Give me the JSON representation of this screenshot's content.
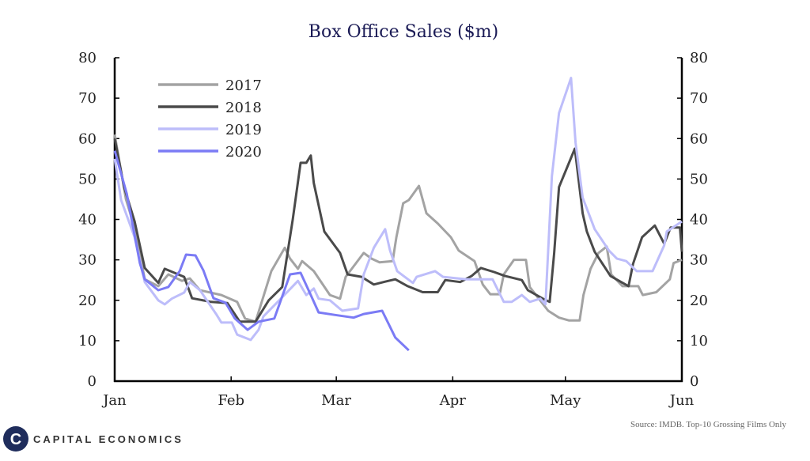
{
  "chart_data": {
    "type": "line",
    "title": "Box Office Sales ($m)",
    "xlabel": "",
    "ylabel": "",
    "x_unit": "days since Jan 1",
    "xlim": [
      0,
      151
    ],
    "ylim": [
      0,
      80
    ],
    "yticks": [
      0,
      10,
      20,
      30,
      40,
      50,
      60,
      70,
      80
    ],
    "xticks": [
      {
        "label": "Jan",
        "day": 0
      },
      {
        "label": "Feb",
        "day": 31
      },
      {
        "label": "Mar",
        "day": 59
      },
      {
        "label": "Apr",
        "day": 90
      },
      {
        "label": "May",
        "day": 120
      },
      {
        "label": "Jun",
        "day": 151
      }
    ],
    "grid": false,
    "legend_position": "top-left",
    "series": [
      {
        "name": "2017",
        "color": "#a3a3a3",
        "points": [
          [
            0,
            61
          ],
          [
            3,
            45
          ],
          [
            5.3,
            38
          ],
          [
            8,
            25.2
          ],
          [
            11.6,
            23.5
          ],
          [
            14.3,
            26.4
          ],
          [
            17.9,
            24.8
          ],
          [
            20,
            25.4
          ],
          [
            22.7,
            22.5
          ],
          [
            28.4,
            21.3
          ],
          [
            32.6,
            19.6
          ],
          [
            34.7,
            15.5
          ],
          [
            37.5,
            14.7
          ],
          [
            41.7,
            27.2
          ],
          [
            45.3,
            33
          ],
          [
            46.7,
            30.3
          ],
          [
            48.8,
            27.8
          ],
          [
            49.9,
            29.7
          ],
          [
            53,
            27.2
          ],
          [
            57.3,
            21.3
          ],
          [
            60,
            20.4
          ],
          [
            61.5,
            25.8
          ],
          [
            66.3,
            31.7
          ],
          [
            68.4,
            30.3
          ],
          [
            70.5,
            29.4
          ],
          [
            74,
            29.7
          ],
          [
            75,
            35.6
          ],
          [
            76.8,
            44
          ],
          [
            78.3,
            44.8
          ],
          [
            81,
            48.3
          ],
          [
            83,
            41.5
          ],
          [
            86,
            39
          ],
          [
            89.5,
            35.6
          ],
          [
            91.6,
            32.3
          ],
          [
            95.8,
            29.7
          ],
          [
            98,
            23.9
          ],
          [
            100,
            21.5
          ],
          [
            102.5,
            21.5
          ],
          [
            103.6,
            26.4
          ],
          [
            106.3,
            30
          ],
          [
            109.5,
            30
          ],
          [
            110.5,
            23.3
          ],
          [
            115.4,
            17.4
          ],
          [
            118.3,
            15.7
          ],
          [
            121,
            15
          ],
          [
            123.8,
            15
          ],
          [
            124.8,
            21.3
          ],
          [
            126.7,
            27.8
          ],
          [
            128.8,
            31.7
          ],
          [
            131,
            33.3
          ],
          [
            132.2,
            26.4
          ],
          [
            135.2,
            23.5
          ],
          [
            139.4,
            23.5
          ],
          [
            140.6,
            21.3
          ],
          [
            144.2,
            22
          ],
          [
            147.8,
            25.2
          ],
          [
            148.8,
            29.2
          ],
          [
            151,
            30
          ]
        ]
      },
      {
        "name": "2018",
        "color": "#4a4a4a",
        "points": [
          [
            0,
            60
          ],
          [
            2.5,
            48
          ],
          [
            5.3,
            39.5
          ],
          [
            8,
            28
          ],
          [
            11.6,
            24.3
          ],
          [
            13.3,
            27.8
          ],
          [
            18.5,
            25.8
          ],
          [
            20.6,
            20.5
          ],
          [
            25.7,
            19.6
          ],
          [
            30,
            19.3
          ],
          [
            33.3,
            14.7
          ],
          [
            37.5,
            14.7
          ],
          [
            41,
            20
          ],
          [
            44.6,
            23.3
          ],
          [
            47.4,
            40
          ],
          [
            49.5,
            54
          ],
          [
            51,
            54
          ],
          [
            52.2,
            55.8
          ],
          [
            53,
            49
          ],
          [
            55.8,
            37
          ],
          [
            60,
            31.7
          ],
          [
            62,
            26.4
          ],
          [
            65.7,
            25.8
          ],
          [
            69,
            23.9
          ],
          [
            72,
            24.6
          ],
          [
            74.7,
            25.2
          ],
          [
            78,
            23.5
          ],
          [
            82,
            22
          ],
          [
            86,
            22
          ],
          [
            88,
            25
          ],
          [
            92,
            24.5
          ],
          [
            95,
            26
          ],
          [
            97.5,
            28
          ],
          [
            101,
            27
          ],
          [
            104,
            26
          ],
          [
            108.4,
            25
          ],
          [
            110,
            22.5
          ],
          [
            114,
            20.4
          ],
          [
            115.8,
            19.6
          ],
          [
            117,
            31.7
          ],
          [
            118.3,
            48
          ],
          [
            122.5,
            57.5
          ],
          [
            124.6,
            41.5
          ],
          [
            125.7,
            37
          ],
          [
            127.8,
            32
          ],
          [
            132,
            26
          ],
          [
            136.8,
            23.5
          ],
          [
            138,
            29
          ],
          [
            140.4,
            35.6
          ],
          [
            143.8,
            38.5
          ],
          [
            146.3,
            34
          ],
          [
            148,
            38
          ],
          [
            150.5,
            38
          ],
          [
            151,
            32
          ]
        ]
      },
      {
        "name": "2019",
        "color": "#bdbdfa",
        "points": [
          [
            0,
            55
          ],
          [
            1.7,
            44.8
          ],
          [
            5.3,
            35.6
          ],
          [
            8,
            24.5
          ],
          [
            11.6,
            20
          ],
          [
            13.3,
            19
          ],
          [
            15.2,
            20.4
          ],
          [
            18.5,
            21.9
          ],
          [
            20,
            24.5
          ],
          [
            22.7,
            22.5
          ],
          [
            27,
            16.6
          ],
          [
            28.4,
            14.5
          ],
          [
            31.2,
            14.5
          ],
          [
            32.6,
            11.5
          ],
          [
            36.2,
            10.2
          ],
          [
            38.3,
            12.7
          ],
          [
            39.6,
            16
          ],
          [
            43.8,
            20
          ],
          [
            48.8,
            24.8
          ],
          [
            51,
            21.3
          ],
          [
            53,
            22.9
          ],
          [
            54.3,
            20.4
          ],
          [
            57.3,
            20
          ],
          [
            60.6,
            17.4
          ],
          [
            64.8,
            18
          ],
          [
            66.3,
            26.4
          ],
          [
            69,
            33
          ],
          [
            72,
            37.6
          ],
          [
            73.3,
            32.3
          ],
          [
            75.2,
            27.2
          ],
          [
            79.4,
            24.3
          ],
          [
            80.4,
            25.8
          ],
          [
            85.3,
            27.2
          ],
          [
            87.4,
            25.8
          ],
          [
            93.7,
            25.2
          ],
          [
            100.6,
            25.2
          ],
          [
            103.6,
            19.6
          ],
          [
            105.7,
            19.6
          ],
          [
            108.4,
            21.3
          ],
          [
            110.5,
            19.6
          ],
          [
            113.3,
            20.4
          ],
          [
            114.7,
            19
          ],
          [
            116.4,
            50.7
          ],
          [
            118.3,
            66.3
          ],
          [
            121.5,
            75
          ],
          [
            122.7,
            59
          ],
          [
            124.6,
            45.4
          ],
          [
            127.8,
            37.6
          ],
          [
            131.6,
            32.3
          ],
          [
            133.7,
            30.3
          ],
          [
            136.2,
            29.7
          ],
          [
            139,
            27.2
          ],
          [
            143.2,
            27.2
          ],
          [
            146.3,
            33.6
          ],
          [
            147,
            37
          ],
          [
            151,
            39.5
          ]
        ]
      },
      {
        "name": "2020",
        "color": "#7b7bf5",
        "points": [
          [
            0,
            57
          ],
          [
            3.2,
            46.4
          ],
          [
            6.7,
            29.2
          ],
          [
            8,
            25.2
          ],
          [
            11.6,
            22.5
          ],
          [
            14.3,
            23.3
          ],
          [
            17.3,
            27.2
          ],
          [
            19,
            31.3
          ],
          [
            21.5,
            31.1
          ],
          [
            23.6,
            27.4
          ],
          [
            26.3,
            20.5
          ],
          [
            29.5,
            19.4
          ],
          [
            32,
            15.5
          ],
          [
            35.4,
            12.7
          ],
          [
            38.3,
            14.7
          ],
          [
            42.5,
            15.5
          ],
          [
            46.7,
            26.4
          ],
          [
            49.5,
            26.8
          ],
          [
            52.2,
            21.3
          ],
          [
            54.3,
            17
          ],
          [
            58.5,
            16.4
          ],
          [
            63.6,
            15.7
          ],
          [
            66.3,
            16.6
          ],
          [
            71.2,
            17.4
          ],
          [
            74.7,
            10.8
          ],
          [
            78.3,
            7.6
          ]
        ]
      }
    ],
    "source": "Source: IMDB. Top-10 Grossing Films Only"
  },
  "branding": {
    "logo_text": "CAPITAL ECONOMICS",
    "logo_letter": "C"
  }
}
